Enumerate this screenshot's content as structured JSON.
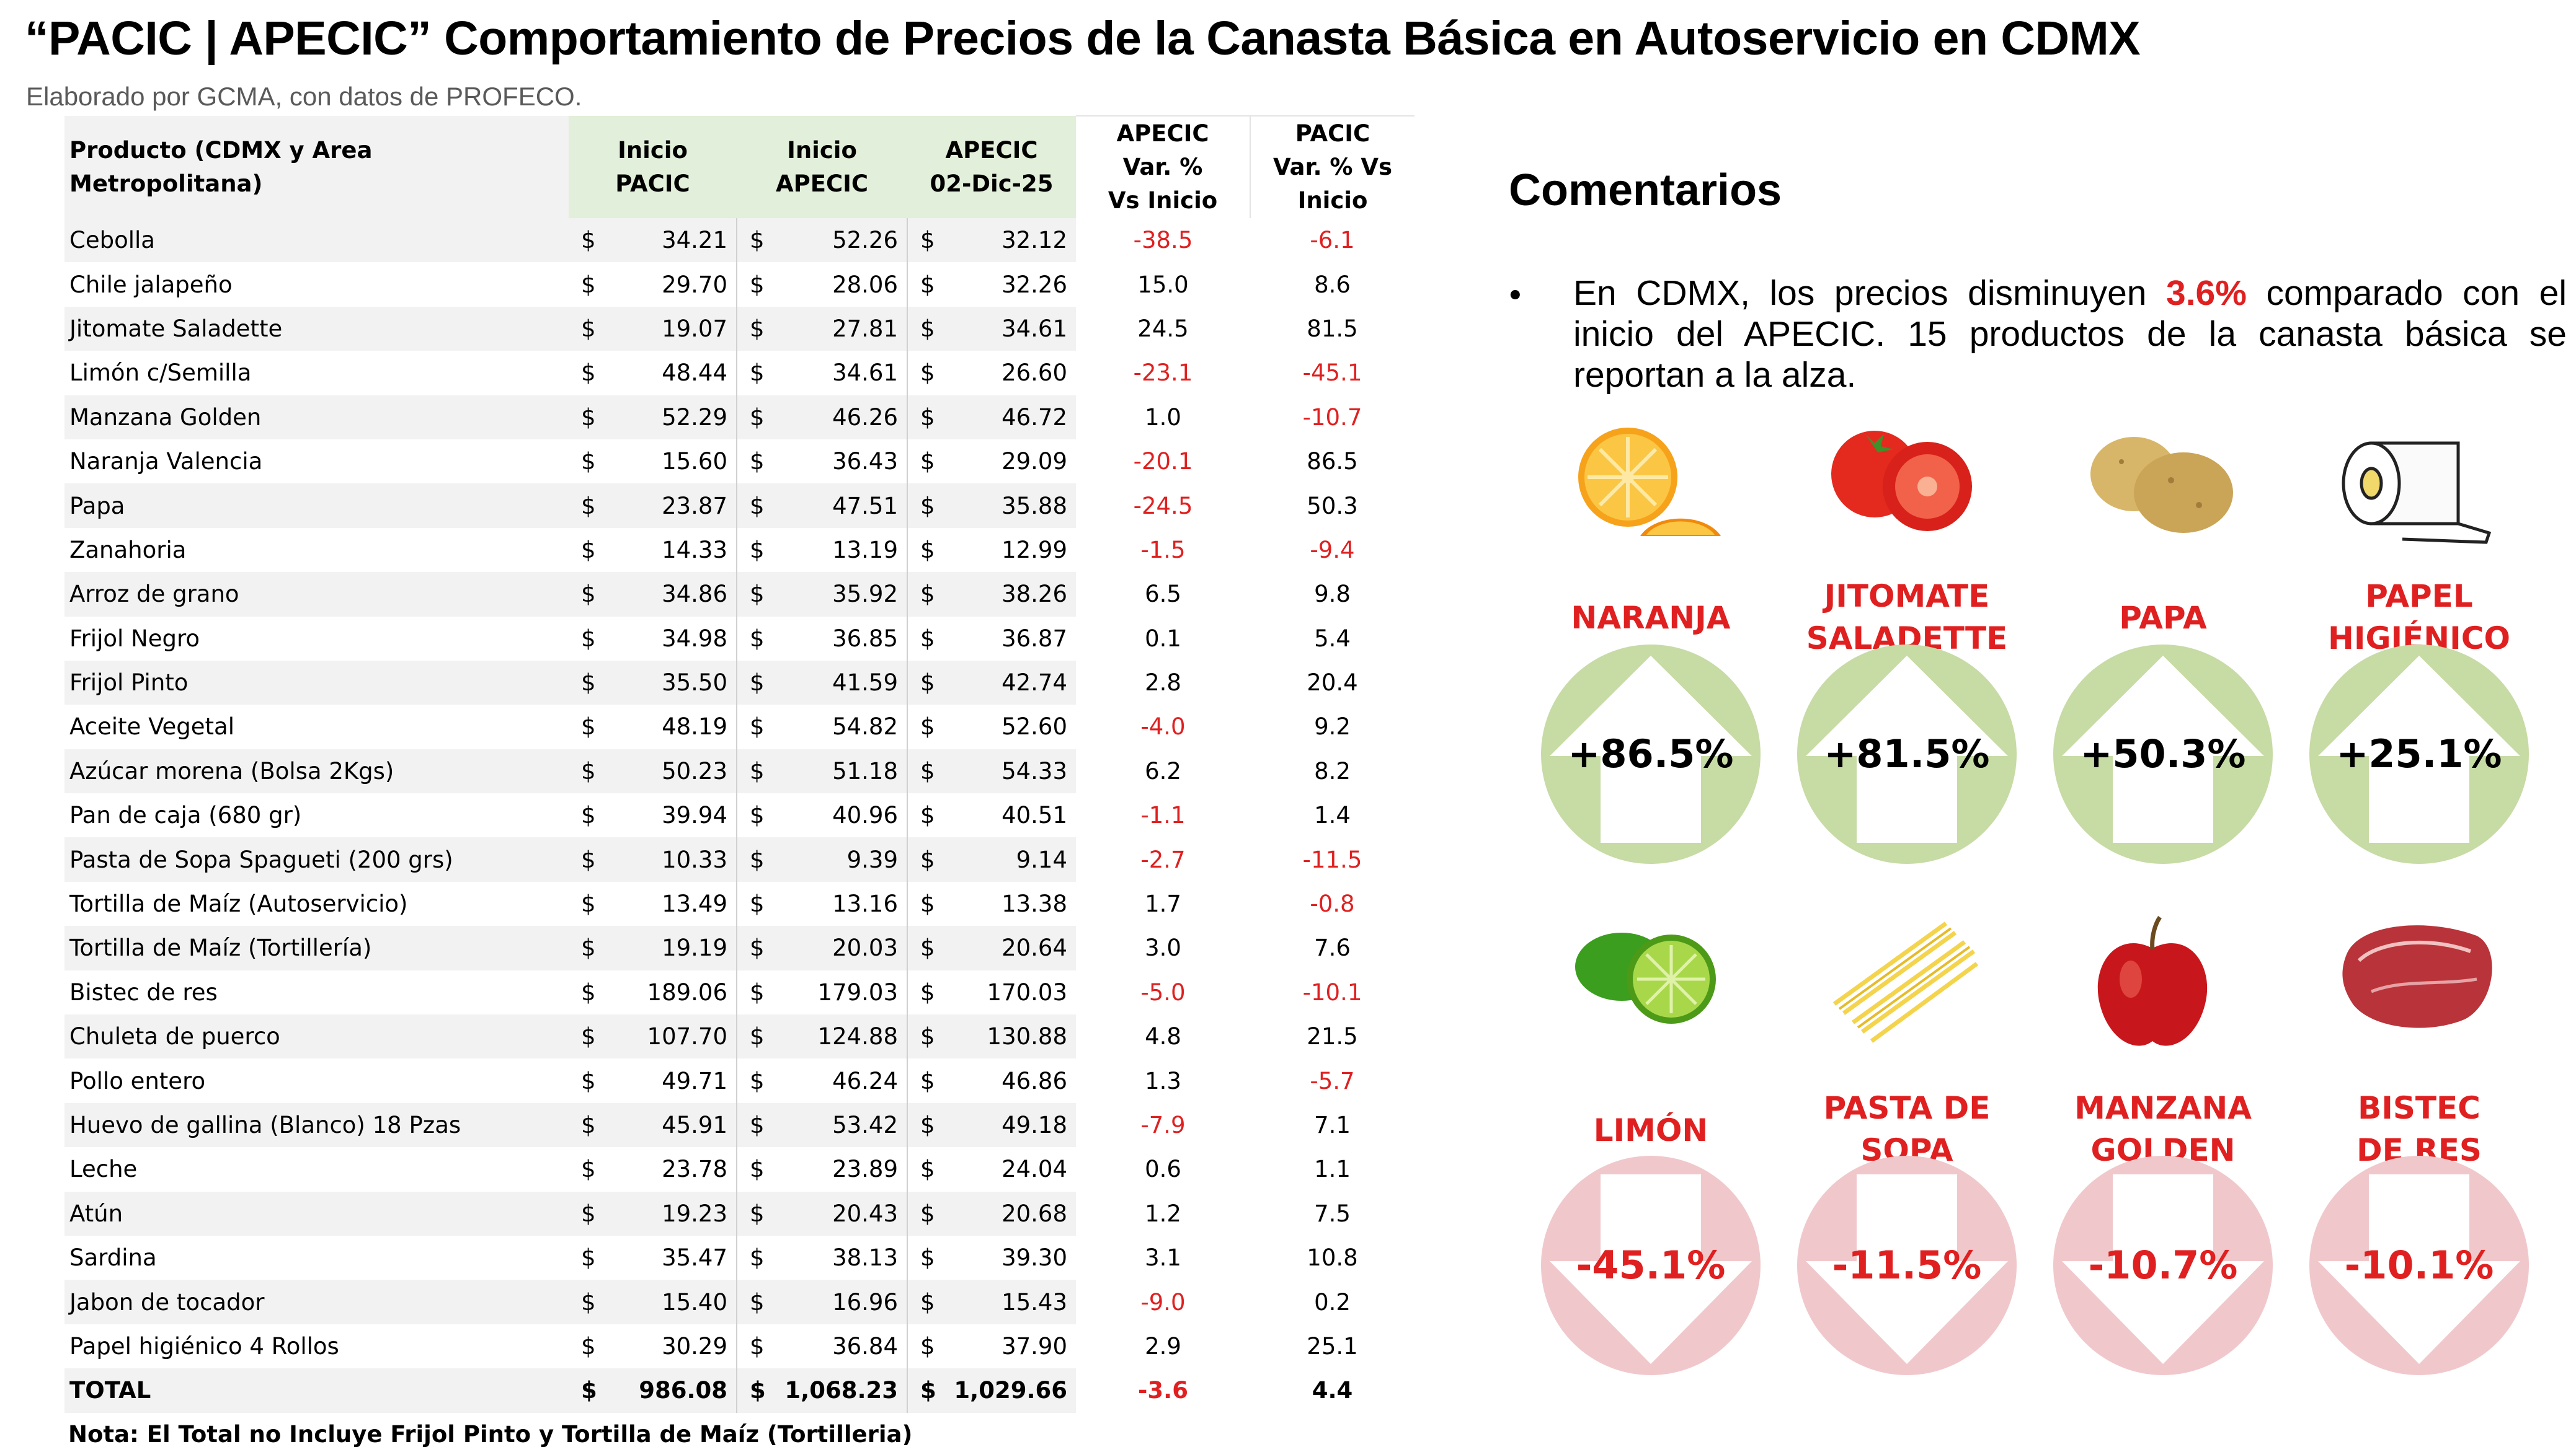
{
  "header": {
    "title": "“PACIC | APECIC” Comportamiento de Precios de la Canasta Básica en Autoservicio en CDMX",
    "subtitle": "Elaborado por GCMA, con datos de PROFECO."
  },
  "table": {
    "columns": {
      "product": "Producto (CDMX y Area Metropolitana)",
      "inicio_pacic": [
        "Inicio",
        "PACIC"
      ],
      "inicio_apecic": [
        "Inicio",
        "APECIC"
      ],
      "apecic_date": [
        "APECIC",
        "02-Dic-25"
      ],
      "apecic_var": [
        "APECIC",
        "Var. %",
        "Vs  Inicio"
      ],
      "pacic_var": [
        "PACIC",
        "Var. % Vs",
        "Inicio"
      ]
    },
    "currency_symbol": "$",
    "rows": [
      {
        "product": "Cebolla",
        "inicio_pacic": "34.21",
        "inicio_apecic": "52.26",
        "apecic": "32.12",
        "apecic_var": "-38.5",
        "pacic_var": "-6.1"
      },
      {
        "product": "Chile jalapeño",
        "inicio_pacic": "29.70",
        "inicio_apecic": "28.06",
        "apecic": "32.26",
        "apecic_var": "15.0",
        "pacic_var": "8.6"
      },
      {
        "product": "Jitomate Saladette",
        "inicio_pacic": "19.07",
        "inicio_apecic": "27.81",
        "apecic": "34.61",
        "apecic_var": "24.5",
        "pacic_var": "81.5"
      },
      {
        "product": "Limón c/Semilla",
        "inicio_pacic": "48.44",
        "inicio_apecic": "34.61",
        "apecic": "26.60",
        "apecic_var": "-23.1",
        "pacic_var": "-45.1"
      },
      {
        "product": "Manzana Golden",
        "inicio_pacic": "52.29",
        "inicio_apecic": "46.26",
        "apecic": "46.72",
        "apecic_var": "1.0",
        "pacic_var": "-10.7"
      },
      {
        "product": "Naranja Valencia",
        "inicio_pacic": "15.60",
        "inicio_apecic": "36.43",
        "apecic": "29.09",
        "apecic_var": "-20.1",
        "pacic_var": "86.5"
      },
      {
        "product": "Papa",
        "inicio_pacic": "23.87",
        "inicio_apecic": "47.51",
        "apecic": "35.88",
        "apecic_var": "-24.5",
        "pacic_var": "50.3"
      },
      {
        "product": "Zanahoria",
        "inicio_pacic": "14.33",
        "inicio_apecic": "13.19",
        "apecic": "12.99",
        "apecic_var": "-1.5",
        "pacic_var": "-9.4"
      },
      {
        "product": "Arroz de grano",
        "inicio_pacic": "34.86",
        "inicio_apecic": "35.92",
        "apecic": "38.26",
        "apecic_var": "6.5",
        "pacic_var": "9.8"
      },
      {
        "product": "Frijol Negro",
        "inicio_pacic": "34.98",
        "inicio_apecic": "36.85",
        "apecic": "36.87",
        "apecic_var": "0.1",
        "pacic_var": "5.4"
      },
      {
        "product": "Frijol Pinto",
        "inicio_pacic": "35.50",
        "inicio_apecic": "41.59",
        "apecic": "42.74",
        "apecic_var": "2.8",
        "pacic_var": "20.4"
      },
      {
        "product": "Aceite Vegetal",
        "inicio_pacic": "48.19",
        "inicio_apecic": "54.82",
        "apecic": "52.60",
        "apecic_var": "-4.0",
        "pacic_var": "9.2"
      },
      {
        "product": "Azúcar morena (Bolsa 2Kgs)",
        "inicio_pacic": "50.23",
        "inicio_apecic": "51.18",
        "apecic": "54.33",
        "apecic_var": "6.2",
        "pacic_var": "8.2"
      },
      {
        "product": "Pan de caja (680 gr)",
        "inicio_pacic": "39.94",
        "inicio_apecic": "40.96",
        "apecic": "40.51",
        "apecic_var": "-1.1",
        "pacic_var": "1.4"
      },
      {
        "product": "Pasta de Sopa Spagueti (200 grs)",
        "inicio_pacic": "10.33",
        "inicio_apecic": "9.39",
        "apecic": "9.14",
        "apecic_var": "-2.7",
        "pacic_var": "-11.5"
      },
      {
        "product": "Tortilla de Maíz (Autoservicio)",
        "inicio_pacic": "13.49",
        "inicio_apecic": "13.16",
        "apecic": "13.38",
        "apecic_var": "1.7",
        "pacic_var": "-0.8"
      },
      {
        "product": "Tortilla de Maíz (Tortillería)",
        "inicio_pacic": "19.19",
        "inicio_apecic": "20.03",
        "apecic": "20.64",
        "apecic_var": "3.0",
        "pacic_var": "7.6"
      },
      {
        "product": "Bistec de res",
        "inicio_pacic": "189.06",
        "inicio_apecic": "179.03",
        "apecic": "170.03",
        "apecic_var": "-5.0",
        "pacic_var": "-10.1"
      },
      {
        "product": "Chuleta de puerco",
        "inicio_pacic": "107.70",
        "inicio_apecic": "124.88",
        "apecic": "130.88",
        "apecic_var": "4.8",
        "pacic_var": "21.5"
      },
      {
        "product": "Pollo entero",
        "inicio_pacic": "49.71",
        "inicio_apecic": "46.24",
        "apecic": "46.86",
        "apecic_var": "1.3",
        "pacic_var": "-5.7"
      },
      {
        "product": "Huevo de gallina (Blanco) 18 Pzas",
        "inicio_pacic": "45.91",
        "inicio_apecic": "53.42",
        "apecic": "49.18",
        "apecic_var": "-7.9",
        "pacic_var": "7.1"
      },
      {
        "product": "Leche",
        "inicio_pacic": "23.78",
        "inicio_apecic": "23.89",
        "apecic": "24.04",
        "apecic_var": "0.6",
        "pacic_var": "1.1"
      },
      {
        "product": "Atún",
        "inicio_pacic": "19.23",
        "inicio_apecic": "20.43",
        "apecic": "20.68",
        "apecic_var": "1.2",
        "pacic_var": "7.5"
      },
      {
        "product": "Sardina",
        "inicio_pacic": "35.47",
        "inicio_apecic": "38.13",
        "apecic": "39.30",
        "apecic_var": "3.1",
        "pacic_var": "10.8"
      },
      {
        "product": "Jabon de tocador",
        "inicio_pacic": "15.40",
        "inicio_apecic": "16.96",
        "apecic": "15.43",
        "apecic_var": "-9.0",
        "pacic_var": "0.2"
      },
      {
        "product": "Papel higiénico 4 Rollos",
        "inicio_pacic": "30.29",
        "inicio_apecic": "36.84",
        "apecic": "37.90",
        "apecic_var": "2.9",
        "pacic_var": "25.1"
      }
    ],
    "total": {
      "product": "TOTAL",
      "inicio_pacic": "986.08",
      "inicio_apecic": "1,068.23",
      "apecic": "1,029.66",
      "apecic_var": "-3.6",
      "pacic_var": "4.4"
    },
    "note": "Nota: El Total no Incluye Frijol Pinto y Tortilla de Maíz (Tortilleria)"
  },
  "comments": {
    "title": "Comentarios",
    "bullet": "•",
    "text_before": "En CDMX, los precios disminuyen ",
    "highlight": "3.6%",
    "text_after": " comparado con el inicio del APECIC. 15 productos de la canasta básica se reportan a la alza."
  },
  "increases": [
    {
      "label": [
        "NARANJA"
      ],
      "value": "+86.5%",
      "icon": "orange-icon"
    },
    {
      "label": [
        "JITOMATE",
        "SALADETTE"
      ],
      "value": "+81.5%",
      "icon": "tomato-icon"
    },
    {
      "label": [
        "PAPA"
      ],
      "value": "+50.3%",
      "icon": "potato-icon"
    },
    {
      "label": [
        "PAPEL",
        "HIGIÉNICO"
      ],
      "value": "+25.1%",
      "icon": "toilet-paper-icon"
    }
  ],
  "decreases": [
    {
      "label": [
        "LIMÓN"
      ],
      "value": "-45.1%",
      "icon": "lime-icon"
    },
    {
      "label": [
        "PASTA DE",
        "SOPA"
      ],
      "value": "-11.5%",
      "icon": "pasta-icon"
    },
    {
      "label": [
        "MANZANA",
        "GOLDEN"
      ],
      "value": "-10.7%",
      "icon": "apple-icon"
    },
    {
      "label": [
        "BISTEC",
        "DE RES"
      ],
      "value": "-10.1%",
      "icon": "steak-icon"
    }
  ],
  "colors": {
    "negative": "#e02020",
    "header_green": "#e2efda",
    "up_badge": "#c7dba5",
    "down_badge": "#f0c8cb"
  }
}
